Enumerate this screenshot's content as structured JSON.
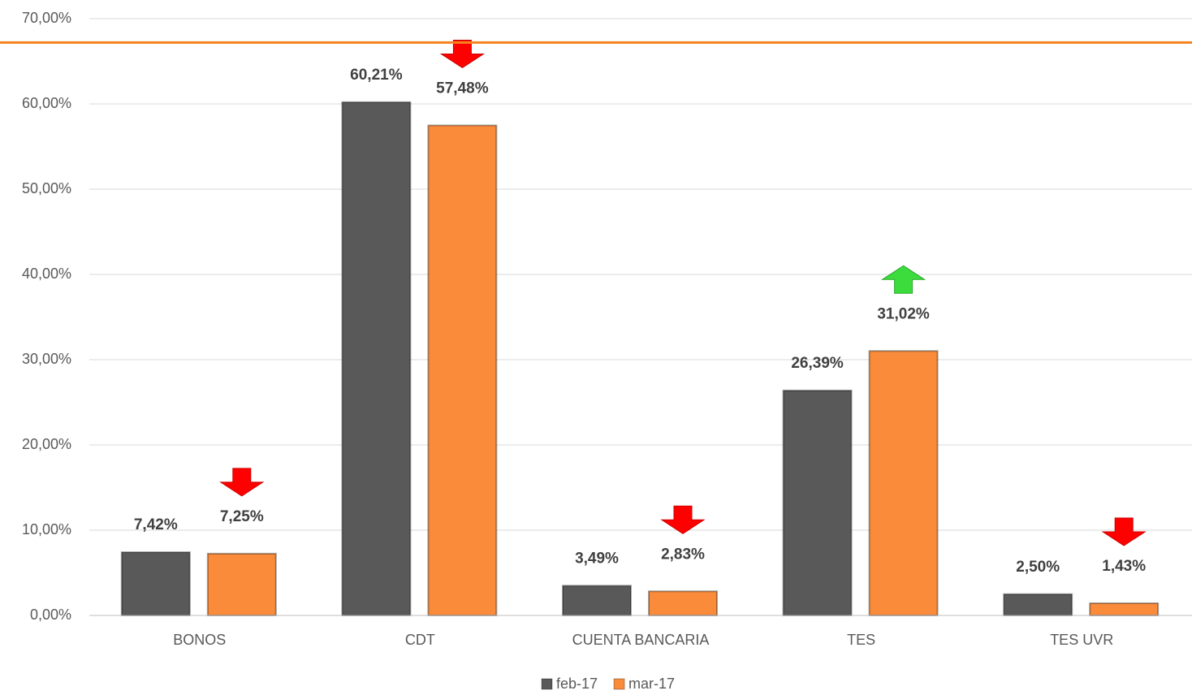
{
  "chart_data": {
    "type": "bar",
    "categories": [
      "BONOS",
      "CDT",
      "CUENTA BANCARIA",
      "TES",
      "TES UVR"
    ],
    "series": [
      {
        "name": "feb-17",
        "color": "#595959",
        "values": [
          7.42,
          60.21,
          3.49,
          26.39,
          2.5
        ],
        "value_labels": [
          "7,42%",
          "60,21%",
          "3,49%",
          "26,39%",
          "2,50%"
        ]
      },
      {
        "name": "mar-17",
        "color": "#f98b3b",
        "values": [
          7.25,
          57.48,
          2.83,
          31.02,
          1.43
        ],
        "value_labels": [
          "7,25%",
          "57,48%",
          "2,83%",
          "31,02%",
          "1,43%"
        ]
      }
    ],
    "ylim": [
      0,
      70
    ],
    "yticks": [
      {
        "value": 0,
        "label": "0,00%"
      },
      {
        "value": 10,
        "label": "10,00%"
      },
      {
        "value": 20,
        "label": "20,00%"
      },
      {
        "value": 30,
        "label": "30,00%"
      },
      {
        "value": 40,
        "label": "40,00%"
      },
      {
        "value": 50,
        "label": "50,00%"
      },
      {
        "value": 60,
        "label": "60,00%"
      },
      {
        "value": 70,
        "label": "70,00%"
      }
    ],
    "reference_line": 67.2,
    "reference_color": "#f58220",
    "grid": true,
    "legend": "bottom"
  }
}
